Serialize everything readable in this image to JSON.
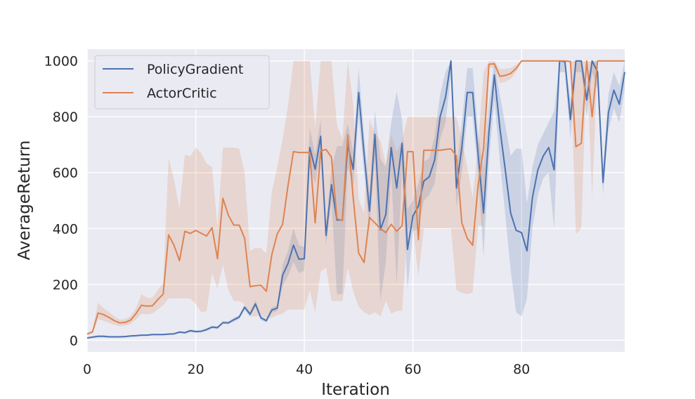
{
  "chart_data": {
    "type": "line",
    "xlabel": "Iteration",
    "ylabel": "AverageReturn",
    "xlim": [
      0,
      99
    ],
    "ylim": [
      -42,
      1042
    ],
    "xticks": [
      0,
      20,
      40,
      60,
      80
    ],
    "yticks": [
      0,
      200,
      400,
      600,
      800,
      1000
    ],
    "grid": true,
    "legend_position": "top-left",
    "series": [
      {
        "name": "PolicyGradient",
        "color": "#4c72b0",
        "x": [
          0,
          1,
          2,
          3,
          4,
          5,
          6,
          7,
          8,
          9,
          10,
          11,
          12,
          13,
          14,
          15,
          16,
          17,
          18,
          19,
          20,
          21,
          22,
          23,
          24,
          25,
          26,
          27,
          28,
          29,
          30,
          31,
          32,
          33,
          34,
          35,
          36,
          37,
          38,
          39,
          40,
          41,
          42,
          43,
          44,
          45,
          46,
          47,
          48,
          49,
          50,
          51,
          52,
          53,
          54,
          55,
          56,
          57,
          58,
          59,
          60,
          61,
          62,
          63,
          64,
          65,
          66,
          67,
          68,
          69,
          70,
          71,
          72,
          73,
          74,
          75,
          76,
          77,
          78,
          79,
          80,
          81,
          82,
          83,
          84,
          85,
          86,
          87,
          88,
          89,
          90,
          91,
          92,
          93,
          94,
          95,
          96,
          97,
          98,
          99
        ],
        "y": [
          8,
          11,
          14,
          14,
          12,
          12,
          12,
          13,
          15,
          16,
          18,
          18,
          20,
          20,
          20,
          22,
          23,
          29,
          27,
          34,
          31,
          32,
          38,
          47,
          45,
          63,
          62,
          73,
          83,
          118,
          93,
          130,
          80,
          70,
          108,
          115,
          233,
          275,
          340,
          290,
          292,
          690,
          612,
          730,
          375,
          557,
          430,
          430,
          698,
          612,
          887,
          668,
          462,
          737,
          395,
          450,
          690,
          545,
          705,
          325,
          445,
          480,
          570,
          585,
          645,
          800,
          870,
          1000,
          545,
          690,
          887,
          887,
          665,
          455,
          745,
          950,
          760,
          610,
          455,
          393,
          385,
          320,
          510,
          610,
          660,
          690,
          610,
          1000,
          997,
          790,
          1000,
          1000,
          860,
          1000,
          960,
          565,
          815,
          895,
          845,
          960
        ],
        "lower": [
          5,
          8,
          10,
          10,
          9,
          9,
          9,
          10,
          12,
          13,
          15,
          15,
          17,
          17,
          17,
          19,
          20,
          25,
          23,
          29,
          27,
          28,
          33,
          42,
          40,
          58,
          57,
          66,
          76,
          108,
          85,
          118,
          72,
          63,
          98,
          105,
          195,
          230,
          280,
          240,
          250,
          620,
          560,
          670,
          340,
          500,
          165,
          165,
          620,
          550,
          800,
          600,
          400,
          650,
          140,
          280,
          600,
          200,
          620,
          180,
          390,
          400,
          500,
          520,
          560,
          720,
          780,
          950,
          480,
          600,
          800,
          800,
          590,
          300,
          640,
          860,
          640,
          450,
          250,
          100,
          85,
          150,
          400,
          520,
          580,
          600,
          400,
          960,
          960,
          720,
          960,
          960,
          800,
          960,
          900,
          520,
          750,
          830,
          780,
          900
        ],
        "upper": [
          11,
          14,
          18,
          18,
          15,
          15,
          15,
          16,
          18,
          19,
          21,
          21,
          23,
          23,
          23,
          25,
          26,
          33,
          31,
          39,
          35,
          36,
          43,
          52,
          50,
          68,
          67,
          80,
          90,
          128,
          101,
          142,
          88,
          77,
          118,
          125,
          271,
          320,
          400,
          340,
          334,
          760,
          664,
          790,
          410,
          614,
          695,
          695,
          776,
          674,
          974,
          736,
          524,
          824,
          650,
          620,
          780,
          890,
          790,
          470,
          500,
          560,
          640,
          650,
          730,
          880,
          960,
          1000,
          610,
          780,
          974,
          974,
          740,
          610,
          850,
          1000,
          880,
          770,
          660,
          686,
          685,
          490,
          620,
          700,
          740,
          780,
          820,
          1000,
          1000,
          860,
          1000,
          1000,
          920,
          1000,
          1000,
          610,
          880,
          960,
          910,
          1000
        ]
      },
      {
        "name": "ActorCritic",
        "color": "#dd8452",
        "x": [
          0,
          1,
          2,
          3,
          4,
          5,
          6,
          7,
          8,
          9,
          10,
          11,
          12,
          13,
          14,
          15,
          16,
          17,
          18,
          19,
          20,
          21,
          22,
          23,
          24,
          25,
          26,
          27,
          28,
          29,
          30,
          31,
          32,
          33,
          34,
          35,
          36,
          37,
          38,
          39,
          40,
          41,
          42,
          43,
          44,
          45,
          46,
          47,
          48,
          49,
          50,
          51,
          52,
          53,
          54,
          55,
          56,
          57,
          58,
          59,
          60,
          61,
          62,
          63,
          64,
          65,
          66,
          67,
          68,
          69,
          70,
          71,
          72,
          73,
          74,
          75,
          76,
          77,
          78,
          79,
          80,
          81,
          82,
          83,
          84,
          85,
          86,
          87,
          88,
          89,
          90,
          91,
          92,
          93,
          94,
          95,
          96,
          97,
          98,
          99
        ],
        "y": [
          22,
          30,
          97,
          92,
          82,
          70,
          62,
          64,
          72,
          95,
          125,
          122,
          123,
          145,
          165,
          377,
          340,
          285,
          390,
          382,
          393,
          383,
          373,
          403,
          292,
          508,
          448,
          412,
          412,
          365,
          192,
          195,
          197,
          175,
          305,
          380,
          415,
          555,
          675,
          672,
          672,
          672,
          420,
          677,
          683,
          655,
          435,
          428,
          735,
          510,
          312,
          278,
          440,
          420,
          400,
          385,
          415,
          390,
          410,
          675,
          675,
          360,
          680,
          680,
          680,
          680,
          683,
          685,
          660,
          420,
          365,
          340,
          555,
          685,
          988,
          990,
          945,
          948,
          955,
          973,
          1000,
          1000,
          1000,
          1000,
          1000,
          1000,
          1000,
          1000,
          1000,
          998,
          693,
          705,
          1000,
          800,
          1000,
          1000,
          1000,
          1000,
          1000,
          1000
        ],
        "lower": [
          18,
          25,
          75,
          70,
          62,
          55,
          50,
          52,
          58,
          75,
          95,
          92,
          95,
          110,
          125,
          150,
          150,
          150,
          150,
          150,
          130,
          100,
          105,
          240,
          185,
          270,
          180,
          140,
          140,
          130,
          85,
          85,
          90,
          80,
          80,
          90,
          95,
          110,
          110,
          110,
          110,
          180,
          100,
          245,
          260,
          140,
          140,
          140,
          260,
          175,
          120,
          100,
          90,
          100,
          85,
          140,
          95,
          105,
          105,
          400,
          400,
          230,
          400,
          400,
          400,
          400,
          400,
          400,
          180,
          170,
          165,
          170,
          410,
          410,
          975,
          975,
          920,
          925,
          935,
          960,
          1000,
          1000,
          1000,
          1000,
          1000,
          1000,
          1000,
          1000,
          1000,
          995,
          380,
          400,
          1000,
          510,
          1000,
          1000,
          1000,
          1000,
          1000,
          1000
        ],
        "upper": [
          26,
          35,
          135,
          115,
          102,
          85,
          74,
          76,
          86,
          115,
          165,
          152,
          151,
          180,
          205,
          650,
          575,
          470,
          665,
          658,
          690,
          670,
          632,
          620,
          405,
          690,
          690,
          690,
          685,
          600,
          320,
          330,
          330,
          310,
          530,
          620,
          720,
          840,
          1000,
          1000,
          1000,
          1000,
          760,
          1000,
          1000,
          1000,
          770,
          720,
          1000,
          845,
          505,
          456,
          790,
          740,
          715,
          630,
          735,
          675,
          715,
          800,
          800,
          800,
          800,
          800,
          800,
          800,
          800,
          800,
          800,
          720,
          620,
          510,
          700,
          960,
          1000,
          1000,
          970,
          971,
          975,
          986,
          1000,
          1000,
          1000,
          1000,
          1000,
          1000,
          1000,
          1000,
          1000,
          1000,
          1000,
          1000,
          1000,
          1000,
          1000,
          1000,
          1000,
          1000,
          1000,
          1000
        ]
      }
    ]
  }
}
